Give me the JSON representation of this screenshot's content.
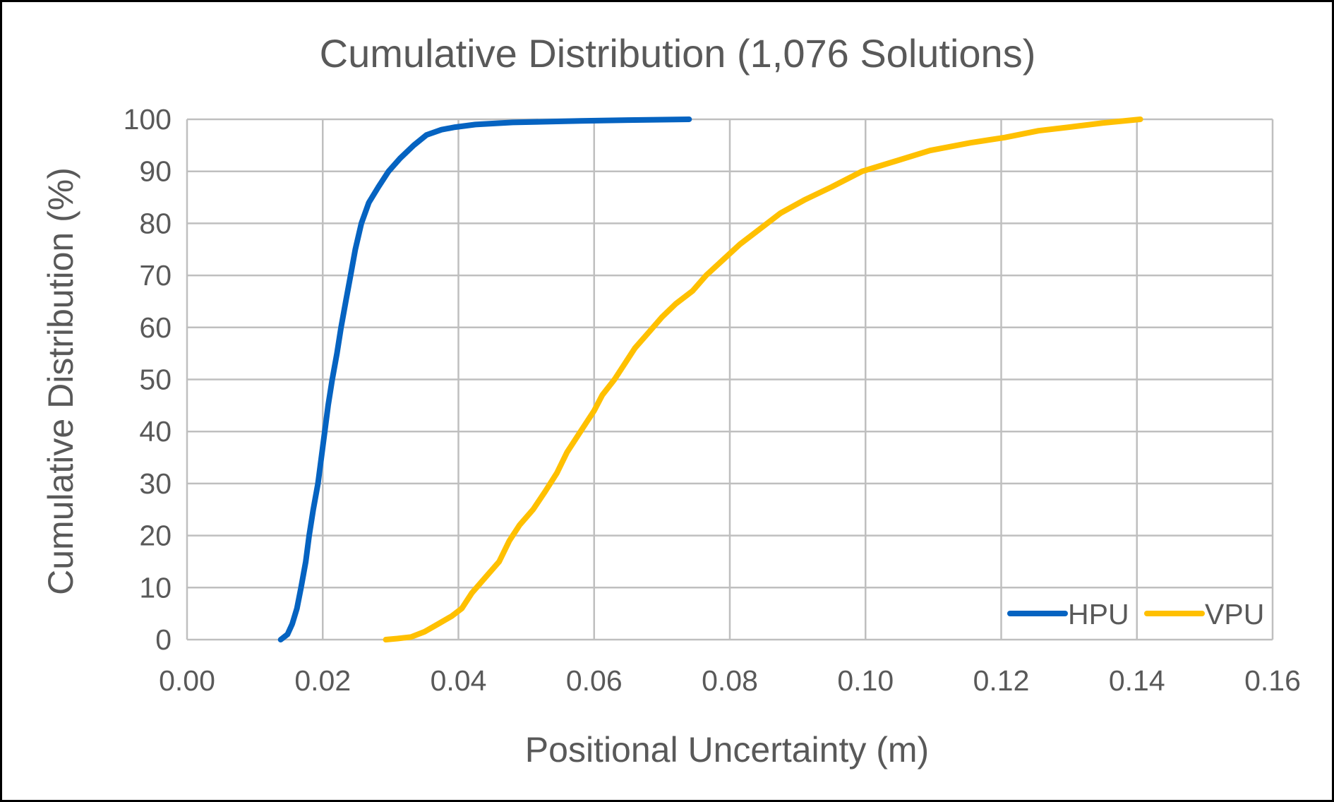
{
  "chart_data": {
    "type": "line",
    "title": "Cumulative Distribution (1,076 Solutions)",
    "xlabel": "Positional Uncertainty (m)",
    "ylabel": "Cumulative Distribution (%)",
    "xlim": [
      0,
      0.16
    ],
    "ylim": [
      0,
      100
    ],
    "x_ticks": [
      "0.00",
      "0.02",
      "0.04",
      "0.06",
      "0.08",
      "0.10",
      "0.12",
      "0.14",
      "0.16"
    ],
    "y_ticks": [
      "0",
      "10",
      "20",
      "30",
      "40",
      "50",
      "60",
      "70",
      "80",
      "90",
      "100"
    ],
    "grid": true,
    "legend_position": "bottom-right",
    "series": [
      {
        "name": "HPU",
        "color": "#0563C1",
        "points": [
          [
            0.0138,
            0
          ],
          [
            0.0148,
            1
          ],
          [
            0.0155,
            3
          ],
          [
            0.0162,
            6
          ],
          [
            0.0168,
            10
          ],
          [
            0.0175,
            15
          ],
          [
            0.018,
            20
          ],
          [
            0.0186,
            25
          ],
          [
            0.0193,
            30
          ],
          [
            0.0198,
            35
          ],
          [
            0.0203,
            40
          ],
          [
            0.0208,
            45
          ],
          [
            0.0214,
            50
          ],
          [
            0.0221,
            55
          ],
          [
            0.0227,
            60
          ],
          [
            0.0234,
            65
          ],
          [
            0.0241,
            70
          ],
          [
            0.0248,
            75
          ],
          [
            0.0257,
            80
          ],
          [
            0.0268,
            84
          ],
          [
            0.0282,
            87
          ],
          [
            0.0297,
            90
          ],
          [
            0.0314,
            92.5
          ],
          [
            0.0334,
            95
          ],
          [
            0.0353,
            97
          ],
          [
            0.0375,
            98
          ],
          [
            0.0395,
            98.5
          ],
          [
            0.0425,
            99
          ],
          [
            0.048,
            99.4
          ],
          [
            0.058,
            99.7
          ],
          [
            0.065,
            99.85
          ],
          [
            0.074,
            100
          ]
        ]
      },
      {
        "name": "VPU",
        "color": "#FFC000",
        "points": [
          [
            0.0293,
            0
          ],
          [
            0.031,
            0.2
          ],
          [
            0.033,
            0.5
          ],
          [
            0.035,
            1.5
          ],
          [
            0.037,
            3
          ],
          [
            0.039,
            4.5
          ],
          [
            0.0405,
            6
          ],
          [
            0.042,
            9
          ],
          [
            0.044,
            12
          ],
          [
            0.046,
            15
          ],
          [
            0.0475,
            19
          ],
          [
            0.049,
            22
          ],
          [
            0.051,
            25
          ],
          [
            0.0528,
            28.5
          ],
          [
            0.0545,
            32
          ],
          [
            0.056,
            36
          ],
          [
            0.0575,
            39
          ],
          [
            0.059,
            42
          ],
          [
            0.06,
            44
          ],
          [
            0.0612,
            47
          ],
          [
            0.063,
            50
          ],
          [
            0.0645,
            53
          ],
          [
            0.066,
            56
          ],
          [
            0.068,
            59
          ],
          [
            0.07,
            62
          ],
          [
            0.072,
            64.5
          ],
          [
            0.0745,
            67
          ],
          [
            0.0765,
            70
          ],
          [
            0.079,
            73
          ],
          [
            0.0815,
            76
          ],
          [
            0.0845,
            79
          ],
          [
            0.0875,
            82
          ],
          [
            0.091,
            84.5
          ],
          [
            0.095,
            87
          ],
          [
            0.0995,
            90
          ],
          [
            0.1045,
            92
          ],
          [
            0.1095,
            94
          ],
          [
            0.1155,
            95.5
          ],
          [
            0.1205,
            96.5
          ],
          [
            0.1255,
            97.8
          ],
          [
            0.13,
            98.5
          ],
          [
            0.135,
            99.3
          ],
          [
            0.1405,
            100
          ]
        ]
      }
    ]
  }
}
